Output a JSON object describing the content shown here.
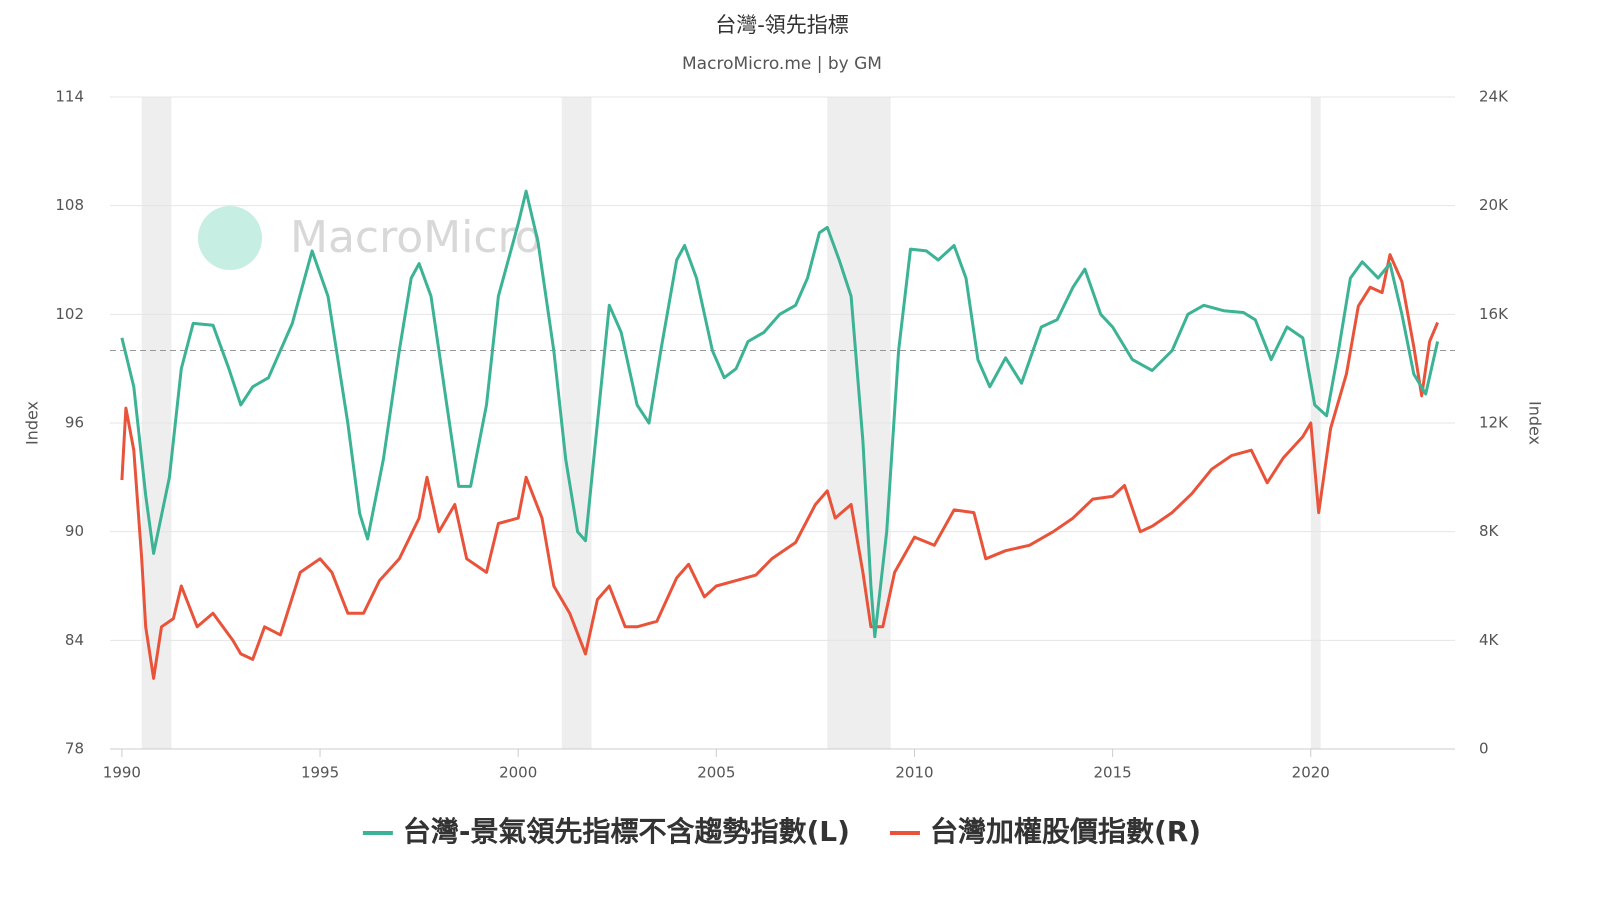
{
  "chart_data": {
    "type": "line",
    "title": "台灣-領先指標",
    "subtitle": "MacroMicro.me | by GM",
    "watermark": "MacroMicro",
    "y_label": "Index",
    "y2_label": "Index",
    "xlim": [
      1989.7,
      2023.64
    ],
    "xticks": [
      1990,
      1995,
      2000,
      2005,
      2010,
      2015,
      2020
    ],
    "ylim": [
      78,
      114
    ],
    "yticks": [
      78,
      84,
      90,
      96,
      102,
      108,
      114
    ],
    "y2lim": [
      0,
      24000
    ],
    "y2ticks": [
      0,
      {
        "value": 4000,
        "label": "4K"
      },
      {
        "value": 8000,
        "label": "8K"
      },
      {
        "value": 12000,
        "label": "12K"
      },
      {
        "value": 16000,
        "label": "16K"
      },
      {
        "value": 20000,
        "label": "20K"
      },
      {
        "value": 24000,
        "label": "24K"
      }
    ],
    "grid": true,
    "reference_line": 100,
    "recessions": [
      [
        1990.5,
        1991.25
      ],
      [
        2001.1,
        2001.85
      ],
      [
        2007.8,
        2009.4
      ],
      [
        2020.0,
        2020.25
      ]
    ],
    "series": [
      {
        "name": "台灣-景氣領先指標不含趨勢指數(L)",
        "color": "#3bb394",
        "axis": "y",
        "x": [
          1990.0,
          1990.3,
          1990.6,
          1990.8,
          1991.2,
          1991.5,
          1991.8,
          1992.3,
          1992.7,
          1993.0,
          1993.3,
          1993.7,
          1994.3,
          1994.8,
          1995.2,
          1995.7,
          1996.0,
          1996.2,
          1996.6,
          1997.0,
          1997.3,
          1997.5,
          1997.8,
          1998.2,
          1998.5,
          1998.8,
          1999.2,
          1999.5,
          2000.0,
          2000.2,
          2000.5,
          2000.9,
          2001.2,
          2001.5,
          2001.7,
          2002.0,
          2002.3,
          2002.6,
          2003.0,
          2003.3,
          2003.6,
          2004.0,
          2004.2,
          2004.5,
          2004.9,
          2005.2,
          2005.5,
          2005.8,
          2006.2,
          2006.6,
          2007.0,
          2007.3,
          2007.6,
          2007.8,
          2008.1,
          2008.4,
          2008.7,
          2008.9,
          2009.0,
          2009.3,
          2009.6,
          2009.9,
          2010.3,
          2010.6,
          2011.0,
          2011.3,
          2011.6,
          2011.9,
          2012.3,
          2012.7,
          2013.2,
          2013.6,
          2014.0,
          2014.3,
          2014.7,
          2015.0,
          2015.5,
          2016.0,
          2016.5,
          2016.9,
          2017.3,
          2017.8,
          2018.3,
          2018.6,
          2019.0,
          2019.4,
          2019.8,
          2020.1,
          2020.4,
          2020.7,
          2021.0,
          2021.3,
          2021.7,
          2022.0,
          2022.3,
          2022.6,
          2022.9,
          2023.2
        ],
        "values": [
          100.7,
          98,
          92,
          88.8,
          93,
          99,
          101.5,
          101.4,
          99,
          97,
          98,
          98.5,
          101.5,
          105.5,
          103,
          96,
          91,
          89.6,
          94,
          100,
          104,
          104.8,
          103,
          97,
          92.5,
          92.5,
          97,
          103,
          107,
          108.8,
          106,
          100,
          94,
          90,
          89.5,
          96,
          102.5,
          101,
          97,
          96,
          100,
          105,
          105.8,
          104,
          100,
          98.5,
          99,
          100.5,
          101,
          102,
          102.5,
          104,
          106.5,
          106.8,
          105,
          103,
          95,
          87,
          84.2,
          90,
          100,
          105.6,
          105.5,
          105,
          105.8,
          104,
          99.5,
          98,
          99.6,
          98.2,
          101.3,
          101.7,
          103.5,
          104.5,
          102,
          101.3,
          99.5,
          98.9,
          100,
          102,
          102.5,
          102.2,
          102.1,
          101.7,
          99.5,
          101.3,
          100.7,
          97,
          96.4,
          100,
          104,
          104.9,
          104,
          104.8,
          102,
          98.7,
          97.6,
          100.5
        ]
      },
      {
        "name": "台灣加權股價指數(R)",
        "color": "#e8533a",
        "axis": "y2",
        "x": [
          1990.0,
          1990.1,
          1990.3,
          1990.5,
          1990.6,
          1990.8,
          1991.0,
          1991.3,
          1991.5,
          1991.9,
          1992.3,
          1992.8,
          1993.0,
          1993.3,
          1993.6,
          1994.0,
          1994.5,
          1995.0,
          1995.3,
          1995.7,
          1996.1,
          1996.5,
          1997.0,
          1997.5,
          1997.7,
          1998.0,
          1998.4,
          1998.7,
          1999.2,
          1999.5,
          2000.0,
          2000.2,
          2000.6,
          2000.9,
          2001.3,
          2001.7,
          2002.0,
          2002.3,
          2002.7,
          2003.0,
          2003.5,
          2004.0,
          2004.3,
          2004.7,
          2005.0,
          2005.5,
          2006.0,
          2006.4,
          2007.0,
          2007.5,
          2007.8,
          2008.0,
          2008.4,
          2008.7,
          2008.9,
          2009.2,
          2009.5,
          2010.0,
          2010.5,
          2011.0,
          2011.5,
          2011.8,
          2012.3,
          2012.9,
          2013.5,
          2014.0,
          2014.5,
          2015.0,
          2015.3,
          2015.7,
          2016.0,
          2016.5,
          2017.0,
          2017.5,
          2018.0,
          2018.5,
          2018.9,
          2019.3,
          2019.8,
          2020.0,
          2020.2,
          2020.5,
          2020.9,
          2021.2,
          2021.5,
          2021.8,
          2022.0,
          2022.3,
          2022.6,
          2022.8,
          2023.0,
          2023.2
        ],
        "values": [
          9900,
          12550,
          11000,
          7000,
          4500,
          2600,
          4500,
          4800,
          6000,
          4500,
          5000,
          4000,
          3500,
          3300,
          4500,
          4200,
          6500,
          7000,
          6500,
          5000,
          5000,
          6200,
          7000,
          8500,
          10000,
          8000,
          9000,
          7000,
          6500,
          8300,
          8500,
          10000,
          8500,
          6000,
          5000,
          3500,
          5500,
          6000,
          4500,
          4500,
          4700,
          6300,
          6800,
          5600,
          6000,
          6200,
          6400,
          7000,
          7600,
          9000,
          9500,
          8500,
          9000,
          6500,
          4500,
          4500,
          6500,
          7800,
          7500,
          8800,
          8700,
          7000,
          7300,
          7500,
          8000,
          8500,
          9200,
          9300,
          9700,
          8000,
          8200,
          8700,
          9400,
          10300,
          10800,
          11000,
          9800,
          10700,
          11500,
          12000,
          8700,
          11800,
          13800,
          16300,
          17000,
          16800,
          18200,
          17200,
          14800,
          13000,
          15000,
          15700
        ]
      }
    ]
  }
}
